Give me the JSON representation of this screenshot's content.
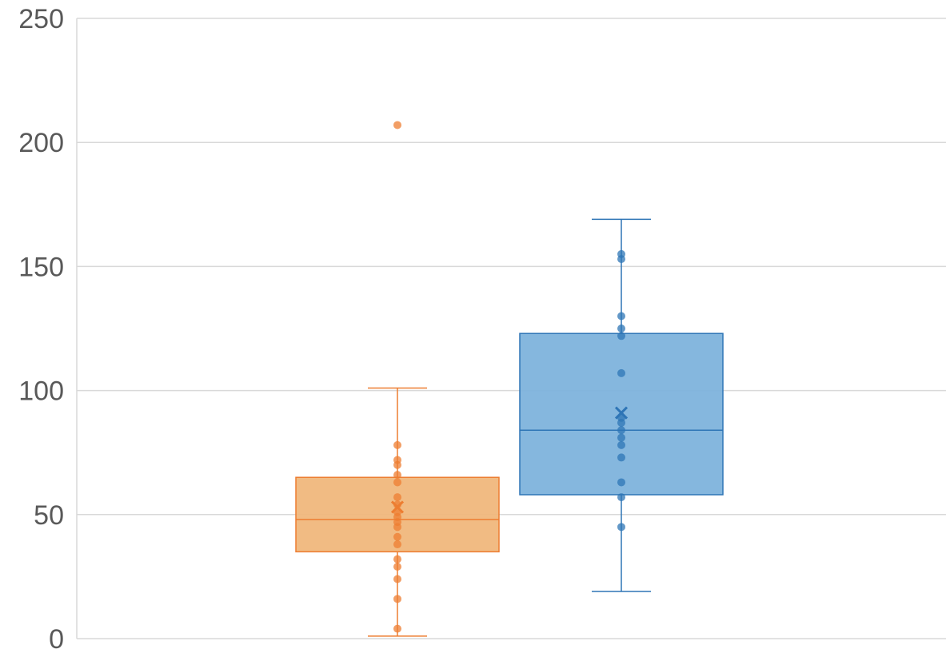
{
  "chart_data": {
    "type": "box",
    "title": "",
    "xlabel": "",
    "ylabel": "",
    "ylim": [
      0,
      250
    ],
    "yticks": [
      0,
      50,
      100,
      150,
      200,
      250
    ],
    "grid": true,
    "legend": "none",
    "series": [
      {
        "color": "#ed7d31",
        "fill": "#f0b77c",
        "whisker_low": 1,
        "q1": 35,
        "median": 48,
        "q3": 65,
        "whisker_high": 101,
        "mean": 53,
        "points": [
          4,
          16,
          24,
          29,
          32,
          38,
          41,
          45,
          47,
          49,
          51,
          54,
          57,
          63,
          66,
          70,
          72,
          78
        ],
        "outliers": [
          207
        ]
      },
      {
        "color": "#2e75b6",
        "fill": "#7eb3dc",
        "whisker_low": 19,
        "q1": 58,
        "median": 84,
        "q3": 123,
        "whisker_high": 169,
        "mean": 91,
        "points": [
          45,
          57,
          63,
          73,
          78,
          81,
          84,
          87,
          89,
          107,
          122,
          125,
          130,
          153,
          155
        ],
        "outliers": []
      }
    ]
  }
}
